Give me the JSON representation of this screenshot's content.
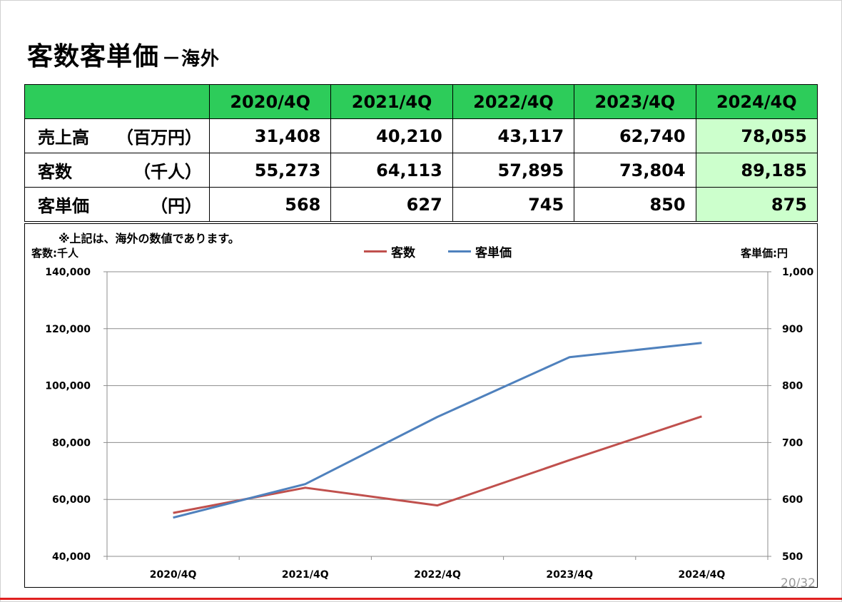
{
  "title": {
    "main": "客数客単価",
    "sub": "－海外"
  },
  "table": {
    "headers": [
      "2020/4Q",
      "2021/4Q",
      "2022/4Q",
      "2023/4Q",
      "2024/4Q"
    ],
    "rows": [
      {
        "name": "売上高",
        "unit": "（百万円）",
        "values": [
          "31,408",
          "40,210",
          "43,117",
          "62,740",
          "78,055"
        ]
      },
      {
        "name": "客数",
        "unit": "（千人）",
        "values": [
          "55,273",
          "64,113",
          "57,895",
          "73,804",
          "89,185"
        ]
      },
      {
        "name": "客単価",
        "unit": "（円）",
        "values": [
          "568",
          "627",
          "745",
          "850",
          "875"
        ]
      }
    ]
  },
  "chart_note": "※上記は、海外の数値であります。",
  "page_number": "20/32",
  "colors": {
    "header_green": "#2dcc5a",
    "highlight_green": "#ccffcc",
    "customers_line": "#c0504d",
    "price_line": "#4f81bd"
  },
  "chart_data": {
    "type": "line",
    "categories": [
      "2020/4Q",
      "2021/4Q",
      "2022/4Q",
      "2023/4Q",
      "2024/4Q"
    ],
    "series": [
      {
        "name": "客数",
        "axis": "left",
        "color": "#c0504d",
        "values": [
          55273,
          64113,
          57895,
          73804,
          89185
        ]
      },
      {
        "name": "客単価",
        "axis": "right",
        "color": "#4f81bd",
        "values": [
          568,
          627,
          745,
          850,
          875
        ]
      }
    ],
    "ylabel_left": "客数:千人",
    "ylabel_right": "客単価:円",
    "ylim_left": [
      40000,
      140000
    ],
    "ylim_right": [
      500,
      1000
    ],
    "yticks_left": [
      "40,000",
      "60,000",
      "80,000",
      "100,000",
      "120,000",
      "140,000"
    ],
    "yticks_right": [
      "500",
      "600",
      "700",
      "800",
      "900",
      "1,000"
    ],
    "grid": true,
    "legend": "top-center"
  }
}
